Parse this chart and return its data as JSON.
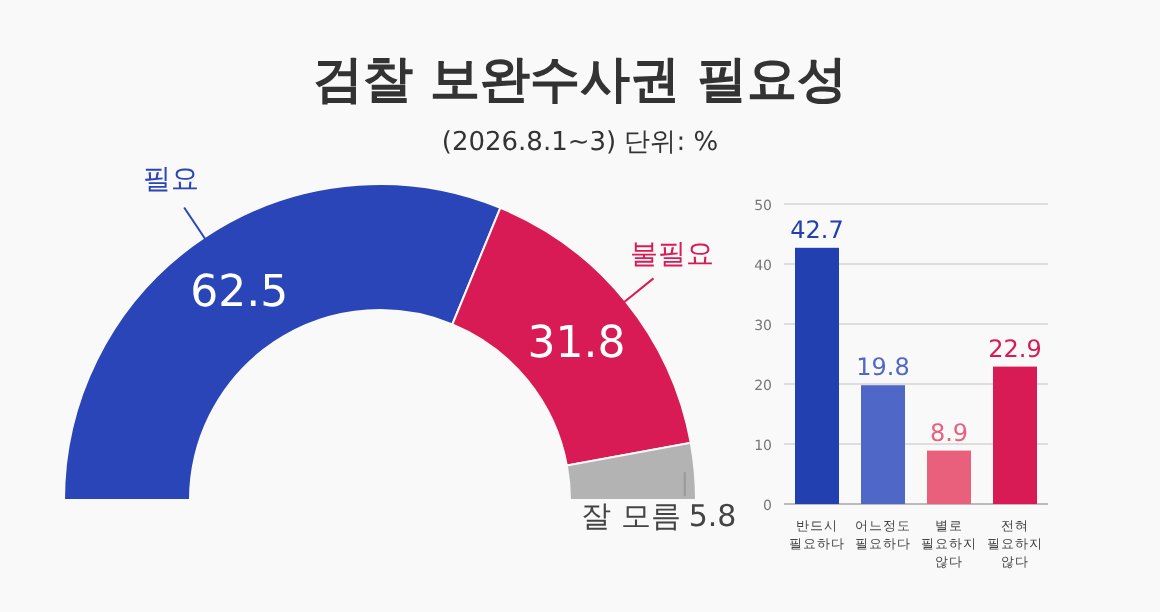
{
  "chart_data": [
    {
      "type": "donut",
      "title": "검찰 보완수사권 필요성",
      "subtitle": "(2026.8.1~3) 단위: %",
      "categories": [
        "필요",
        "불필요",
        "잘 모름"
      ],
      "values": [
        62.5,
        31.8,
        5.8
      ],
      "colors": [
        "#2a45b8",
        "#d81b55",
        "#b3b3b3"
      ],
      "data_labels": true
    },
    {
      "type": "bar",
      "categories": [
        "반드시 필요하다",
        "어느정도 필요하다",
        "별로 필요하지 않다",
        "전혀 필요하지 않다"
      ],
      "values": [
        42.7,
        19.8,
        8.9,
        22.9
      ],
      "colors": [
        "#2240b0",
        "#4f68c8",
        "#e8607c",
        "#d81b55"
      ],
      "ylim": [
        0,
        50
      ],
      "yticks": [
        0,
        10,
        20,
        30,
        40,
        50
      ],
      "grid": "y",
      "data_labels": true
    }
  ]
}
